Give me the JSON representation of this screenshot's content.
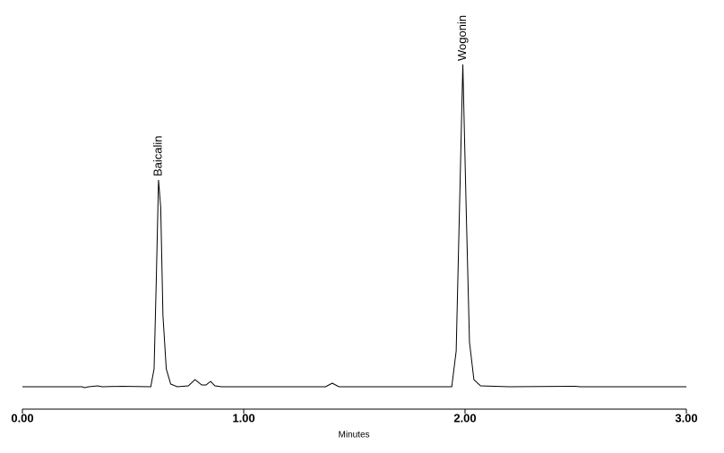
{
  "chart_data": {
    "type": "line",
    "xlabel": "Minutes",
    "x": [
      0,
      0.27,
      0.28,
      0.3,
      0.34,
      0.36,
      0.45,
      0.58,
      0.595,
      0.605,
      0.615,
      0.625,
      0.635,
      0.65,
      0.67,
      0.7,
      0.75,
      0.78,
      0.81,
      0.83,
      0.85,
      0.87,
      0.9,
      1.37,
      1.4,
      1.43,
      1.94,
      1.96,
      1.975,
      1.99,
      2.005,
      2.02,
      2.04,
      2.07,
      2.2,
      2.5,
      2.52,
      3.0
    ],
    "series": [
      {
        "color": "#000000",
        "values": [
          0,
          0,
          -1,
          0,
          1,
          0,
          0.5,
          0,
          20,
          120,
          231,
          200,
          80,
          20,
          3,
          0,
          1,
          8,
          2,
          2,
          6,
          1,
          0,
          0,
          4,
          0,
          0,
          40,
          200,
          360,
          200,
          50,
          8,
          1,
          0,
          0.5,
          0,
          0
        ]
      }
    ],
    "annotations": [
      {
        "text": "Baicalin",
        "x": 0.615,
        "y": 231
      },
      {
        "text": "Wogonin",
        "x": 1.99,
        "y": 360
      }
    ],
    "xlim": [
      0,
      3
    ],
    "xticks": [
      {
        "value": 0,
        "label": "0.00"
      },
      {
        "value": 1,
        "label": "1.00"
      },
      {
        "value": 2,
        "label": "2.00"
      },
      {
        "value": 3,
        "label": "3.00"
      }
    ],
    "ylim": [
      0,
      400
    ]
  }
}
